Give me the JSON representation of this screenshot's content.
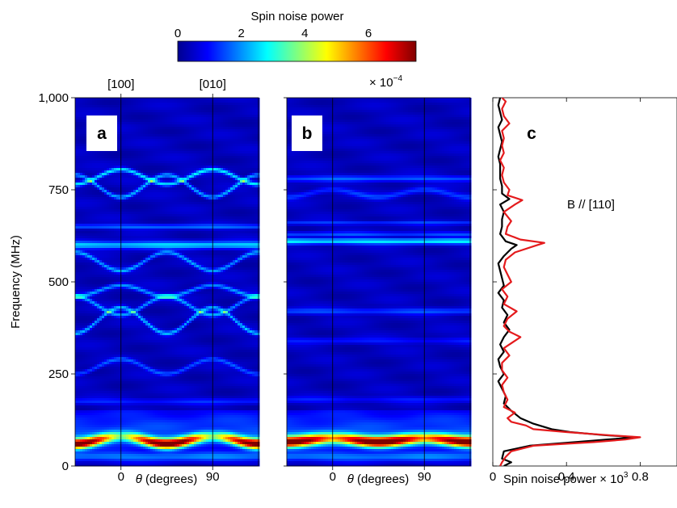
{
  "colorbar": {
    "title": "Spin noise power",
    "ticks": [
      "0",
      "2",
      "4",
      "6"
    ],
    "tick_values": [
      0,
      2,
      4,
      6
    ],
    "range": [
      0,
      7.5
    ],
    "multiplier": "× 10",
    "multiplier_exp": "−4",
    "colormap": "jet"
  },
  "chart_data": [
    {
      "panel": "a",
      "type": "heatmap",
      "xlabel_symbol": "θ",
      "xlabel_rest": " (degrees)",
      "ylabel": "Frequency (MHz)",
      "x_range": [
        -45,
        135
      ],
      "y_range": [
        0,
        1000
      ],
      "x_ticks": [
        {
          "value": 0,
          "label": "0"
        },
        {
          "value": 90,
          "label": "90"
        }
      ],
      "y_ticks": [
        {
          "value": 0,
          "label": "0"
        },
        {
          "value": 250,
          "label": "250"
        },
        {
          "value": 500,
          "label": "500"
        },
        {
          "value": 750,
          "label": "750"
        },
        {
          "value": 1000,
          "label": "1,000"
        }
      ],
      "top_labels": [
        {
          "value": 0,
          "label": "[100]"
        },
        {
          "value": 90,
          "label": "[010]"
        }
      ],
      "vertical_lines": [
        0,
        90
      ],
      "lines": [
        {
          "base": 600,
          "amp": 0,
          "width": 10,
          "intensity": 2.0
        },
        {
          "base": 650,
          "amp": 0,
          "width": 6,
          "intensity": 1.3
        },
        {
          "base": 175,
          "amp": 0,
          "width": 8,
          "intensity": 0.7
        },
        {
          "base": 785,
          "amp": 20,
          "width": 6,
          "intensity": 2.2
        },
        {
          "base": 760,
          "amp": -30,
          "width": 6,
          "intensity": 1.8
        },
        {
          "base": 555,
          "amp": -25,
          "width": 6,
          "intensity": 1.6
        },
        {
          "base": 475,
          "amp": 15,
          "width": 6,
          "intensity": 1.6
        },
        {
          "base": 435,
          "amp": -25,
          "width": 6,
          "intensity": 1.6
        },
        {
          "base": 395,
          "amp": 35,
          "width": 6,
          "intensity": 1.8
        },
        {
          "base": 270,
          "amp": 20,
          "width": 6,
          "intensity": 1.1
        }
      ],
      "low_band": {
        "center": 70,
        "amp": 10,
        "width": 14,
        "peak": 7.4,
        "dip": 2.6
      }
    },
    {
      "panel": "b",
      "type": "heatmap",
      "xlabel_symbol": "θ",
      "xlabel_rest": " (degrees)",
      "x_range": [
        -45,
        135
      ],
      "y_range": [
        0,
        1000
      ],
      "x_ticks": [
        {
          "value": 0,
          "label": "0"
        },
        {
          "value": 90,
          "label": "90"
        }
      ],
      "vertical_lines": [
        0,
        90
      ],
      "lines": [
        {
          "base": 610,
          "amp": 0,
          "width": 8,
          "intensity": 2.2
        },
        {
          "base": 630,
          "amp": 0,
          "width": 5,
          "intensity": 1.1
        },
        {
          "base": 660,
          "amp": 0,
          "width": 5,
          "intensity": 0.9
        },
        {
          "base": 780,
          "amp": 0,
          "width": 8,
          "intensity": 1.1
        },
        {
          "base": 740,
          "amp": 10,
          "width": 8,
          "intensity": 0.9
        },
        {
          "base": 420,
          "amp": 0,
          "width": 8,
          "intensity": 1.0
        },
        {
          "base": 340,
          "amp": 0,
          "width": 8,
          "intensity": 0.6
        },
        {
          "base": 180,
          "amp": 0,
          "width": 8,
          "intensity": 0.6
        }
      ],
      "low_band": {
        "center": 70,
        "amp": 5,
        "width": 15,
        "peak": 7.4,
        "dip": 4.5
      }
    },
    {
      "panel": "c",
      "type": "line",
      "annotation": "B // [110]",
      "xlabel": "Spin noise power × 10",
      "xlabel_exp": "3",
      "x_range": [
        0,
        1.0
      ],
      "y_range": [
        0,
        1000
      ],
      "x_ticks": [
        {
          "value": 0,
          "label": "0"
        },
        {
          "value": 0.4,
          "label": "0.4"
        },
        {
          "value": 0.8,
          "label": "0.8"
        }
      ],
      "series": [
        {
          "color": "#000000",
          "points": [
            [
              0.06,
              0
            ],
            [
              0.1,
              10
            ],
            [
              0.05,
              20
            ],
            [
              0.06,
              40
            ],
            [
              0.2,
              55
            ],
            [
              0.45,
              65
            ],
            [
              0.62,
              72
            ],
            [
              0.78,
              78
            ],
            [
              0.6,
              84
            ],
            [
              0.42,
              92
            ],
            [
              0.32,
              100
            ],
            [
              0.22,
              115
            ],
            [
              0.15,
              130
            ],
            [
              0.1,
              150
            ],
            [
              0.06,
              170
            ],
            [
              0.07,
              190
            ],
            [
              0.05,
              210
            ],
            [
              0.03,
              230
            ],
            [
              0.06,
              250
            ],
            [
              0.04,
              270
            ],
            [
              0.03,
              290
            ],
            [
              0.06,
              310
            ],
            [
              0.04,
              330
            ],
            [
              0.06,
              350
            ],
            [
              0.09,
              370
            ],
            [
              0.06,
              390
            ],
            [
              0.08,
              410
            ],
            [
              0.05,
              430
            ],
            [
              0.06,
              450
            ],
            [
              0.03,
              470
            ],
            [
              0.06,
              490
            ],
            [
              0.05,
              510
            ],
            [
              0.04,
              530
            ],
            [
              0.03,
              550
            ],
            [
              0.06,
              570
            ],
            [
              0.1,
              590
            ],
            [
              0.13,
              600
            ],
            [
              0.07,
              610
            ],
            [
              0.04,
              630
            ],
            [
              0.05,
              650
            ],
            [
              0.05,
              670
            ],
            [
              0.06,
              690
            ],
            [
              0.04,
              710
            ],
            [
              0.09,
              725
            ],
            [
              0.05,
              740
            ],
            [
              0.05,
              760
            ],
            [
              0.04,
              780
            ],
            [
              0.04,
              800
            ],
            [
              0.04,
              820
            ],
            [
              0.03,
              840
            ],
            [
              0.04,
              860
            ],
            [
              0.05,
              880
            ],
            [
              0.04,
              900
            ],
            [
              0.03,
              920
            ],
            [
              0.05,
              940
            ],
            [
              0.04,
              960
            ],
            [
              0.03,
              980
            ],
            [
              0.04,
              1000
            ]
          ]
        },
        {
          "color": "#e41a1c",
          "points": [
            [
              0.04,
              0
            ],
            [
              0.05,
              10
            ],
            [
              0.07,
              25
            ],
            [
              0.1,
              40
            ],
            [
              0.22,
              55
            ],
            [
              0.55,
              65
            ],
            [
              0.72,
              72
            ],
            [
              0.8,
              78
            ],
            [
              0.62,
              84
            ],
            [
              0.4,
              92
            ],
            [
              0.22,
              100
            ],
            [
              0.18,
              110
            ],
            [
              0.1,
              120
            ],
            [
              0.08,
              130
            ],
            [
              0.12,
              145
            ],
            [
              0.06,
              160
            ],
            [
              0.08,
              180
            ],
            [
              0.06,
              200
            ],
            [
              0.05,
              220
            ],
            [
              0.08,
              240
            ],
            [
              0.05,
              260
            ],
            [
              0.05,
              280
            ],
            [
              0.09,
              300
            ],
            [
              0.06,
              320
            ],
            [
              0.15,
              350
            ],
            [
              0.09,
              365
            ],
            [
              0.06,
              380
            ],
            [
              0.08,
              400
            ],
            [
              0.13,
              420
            ],
            [
              0.06,
              440
            ],
            [
              0.08,
              460
            ],
            [
              0.05,
              480
            ],
            [
              0.1,
              500
            ],
            [
              0.08,
              520
            ],
            [
              0.06,
              540
            ],
            [
              0.07,
              560
            ],
            [
              0.12,
              580
            ],
            [
              0.23,
              598
            ],
            [
              0.28,
              606
            ],
            [
              0.15,
              615
            ],
            [
              0.07,
              630
            ],
            [
              0.08,
              650
            ],
            [
              0.1,
              665
            ],
            [
              0.06,
              690
            ],
            [
              0.12,
              710
            ],
            [
              0.16,
              722
            ],
            [
              0.08,
              735
            ],
            [
              0.09,
              750
            ],
            [
              0.06,
              770
            ],
            [
              0.05,
              790
            ],
            [
              0.06,
              810
            ],
            [
              0.04,
              830
            ],
            [
              0.06,
              850
            ],
            [
              0.05,
              870
            ],
            [
              0.06,
              890
            ],
            [
              0.05,
              910
            ],
            [
              0.09,
              930
            ],
            [
              0.06,
              950
            ],
            [
              0.05,
              970
            ],
            [
              0.07,
              990
            ],
            [
              0.05,
              1000
            ]
          ]
        }
      ]
    }
  ]
}
